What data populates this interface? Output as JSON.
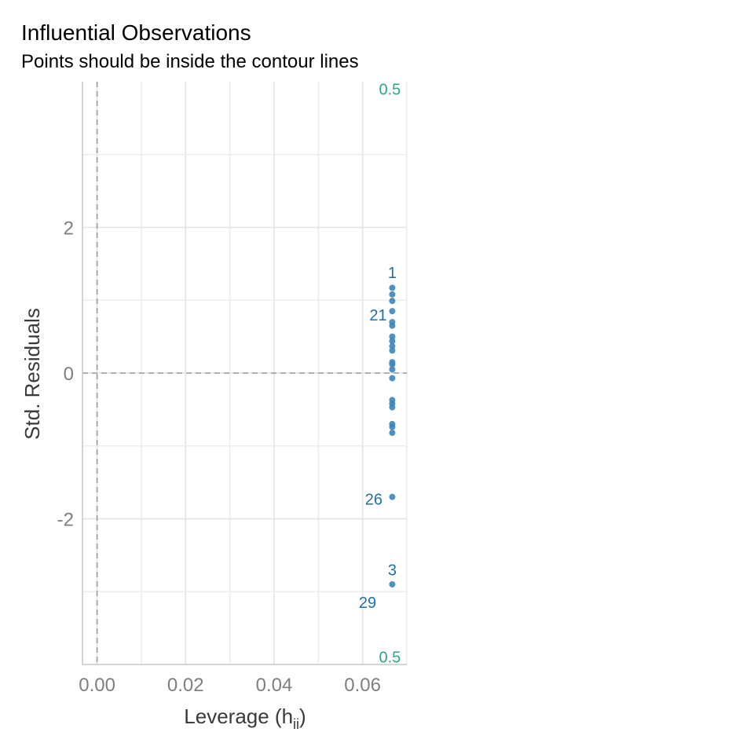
{
  "chart_data": {
    "type": "scatter",
    "title": "Influential Observations",
    "subtitle": "Points should be inside the contour lines",
    "xlabel": "Leverage (h",
    "xlabel_sub": "ii",
    "xlabel_end": ")",
    "ylabel": "Std. Residuals",
    "xlim": [
      -0.0033,
      0.07
    ],
    "ylim": [
      -4.0,
      4.0
    ],
    "x_ticks": [
      0.0,
      0.02,
      0.04,
      0.06
    ],
    "x_tick_labels": [
      "0.00",
      "0.02",
      "0.04",
      "0.06"
    ],
    "y_ticks": [
      -2,
      0,
      2
    ],
    "y_tick_labels": [
      "-2",
      "0",
      "2"
    ],
    "grid": true,
    "reference_lines": [
      {
        "orientation": "vertical",
        "value": 0,
        "style": "dashed"
      },
      {
        "orientation": "horizontal",
        "value": 0,
        "style": "dashed"
      }
    ],
    "point_color": "#3d85b8",
    "label_color": "#1f6fa8",
    "contour_color": "#2aa889",
    "contour_labels": [
      {
        "text": "0.5",
        "x": 0.0637,
        "y": 3.9
      },
      {
        "text": "0.5",
        "x": 0.0637,
        "y": -3.9
      }
    ],
    "points": [
      {
        "x": 0.0667,
        "y": 1.17
      },
      {
        "x": 0.0667,
        "y": 1.08
      },
      {
        "x": 0.0667,
        "y": 0.99
      },
      {
        "x": 0.0667,
        "y": 0.85
      },
      {
        "x": 0.0667,
        "y": 0.7
      },
      {
        "x": 0.0667,
        "y": 0.65
      },
      {
        "x": 0.0667,
        "y": 0.5
      },
      {
        "x": 0.0667,
        "y": 0.44
      },
      {
        "x": 0.0667,
        "y": 0.37
      },
      {
        "x": 0.0667,
        "y": 0.31
      },
      {
        "x": 0.0667,
        "y": 0.15
      },
      {
        "x": 0.0667,
        "y": 0.12
      },
      {
        "x": 0.0667,
        "y": 0.05
      },
      {
        "x": 0.0667,
        "y": -0.07
      },
      {
        "x": 0.0667,
        "y": -0.37
      },
      {
        "x": 0.0667,
        "y": -0.42
      },
      {
        "x": 0.0667,
        "y": -0.47
      },
      {
        "x": 0.0667,
        "y": -0.7
      },
      {
        "x": 0.0667,
        "y": -0.74
      },
      {
        "x": 0.0667,
        "y": -0.82
      },
      {
        "x": 0.0667,
        "y": -1.7
      },
      {
        "x": 0.0667,
        "y": -2.9
      }
    ],
    "point_labels": [
      {
        "text": "1",
        "x": 0.0667,
        "y": 1.38,
        "anchor": "middle"
      },
      {
        "text": "21",
        "x": 0.0655,
        "y": 0.8,
        "anchor": "end"
      },
      {
        "text": "26",
        "x": 0.0645,
        "y": -1.73,
        "anchor": "end"
      },
      {
        "text": "3",
        "x": 0.0667,
        "y": -2.7,
        "anchor": "middle"
      },
      {
        "text": "29",
        "x": 0.0631,
        "y": -3.15,
        "anchor": "end"
      }
    ]
  }
}
